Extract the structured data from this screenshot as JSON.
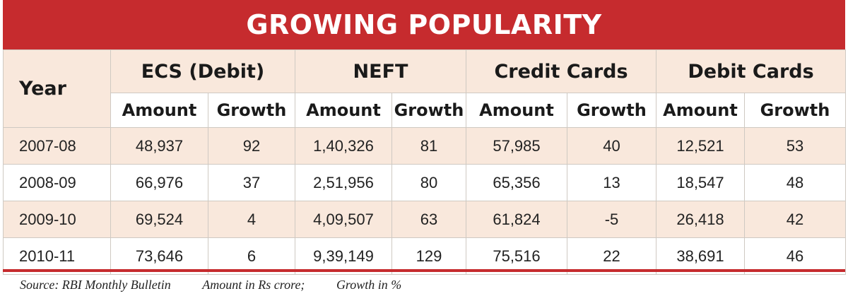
{
  "title": "GROWING POPULARITY",
  "columns": {
    "year": "Year",
    "groups": [
      "ECS (Debit)",
      "NEFT",
      "Credit Cards",
      "Debit Cards"
    ],
    "amount": "Amount",
    "growth": "Growth"
  },
  "rows": [
    {
      "year": "2007-08",
      "values": [
        "48,937",
        "92",
        "1,40,326",
        "81",
        "57,985",
        "40",
        "12,521",
        "53"
      ]
    },
    {
      "year": "2008-09",
      "values": [
        "66,976",
        "37",
        "2,51,956",
        "80",
        "65,356",
        "13",
        "18,547",
        "48"
      ]
    },
    {
      "year": "2009-10",
      "values": [
        "69,524",
        "4",
        "4,09,507",
        "63",
        "61,824",
        "-5",
        "26,418",
        "42"
      ]
    },
    {
      "year": "2010-11",
      "values": [
        "73,646",
        "6",
        "9,39,149",
        "129",
        "75,516",
        "22",
        "38,691",
        "46"
      ]
    }
  ],
  "footer": {
    "source": "Source: RBI Monthly Bulletin",
    "amount_note": "Amount in Rs crore;",
    "growth_note": "Growth in %"
  },
  "colors": {
    "banner": "#c62b2e",
    "shaded_row": "#f9e8dc",
    "grid_line": "#cfc9c2"
  }
}
